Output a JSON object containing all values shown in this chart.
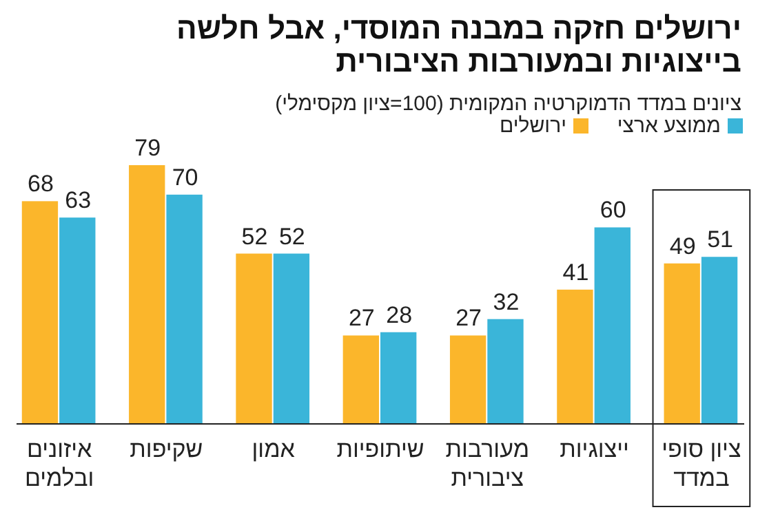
{
  "chart_data": {
    "type": "bar",
    "title": "ירושלים חזקה במבנה המוסדי, אבל חלשה בייצוגיות ובמעורבות הציבורית",
    "subtitle": "ציונים במדד הדמוקרטיה המקומית (100=ציון מקסימלי)",
    "categories": [
      "איזונים ובלמים",
      "שקיפות",
      "אמון",
      "שיתופיות",
      "מעורבות ציבורית",
      "ייצוגיות",
      "ציון סופי במדד"
    ],
    "series": [
      {
        "name": "ירושלים",
        "color": "#fbb62b",
        "values": [
          68,
          79,
          52,
          27,
          27,
          41,
          49
        ]
      },
      {
        "name": "ממוצע ארצי",
        "color": "#3ab5d9",
        "values": [
          63,
          70,
          52,
          28,
          32,
          60,
          51
        ]
      }
    ],
    "data_labels": true,
    "legend": "top right"
  }
}
